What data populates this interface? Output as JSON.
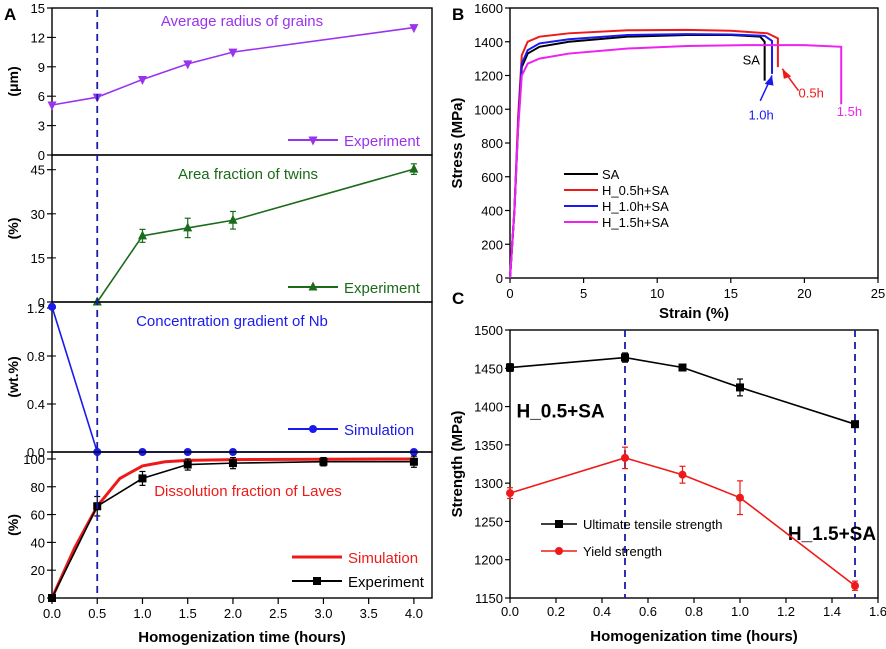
{
  "chart_data": [
    {
      "id": "A",
      "type": "line",
      "panel_label": "A",
      "xlabel": "Homogenization time (hours)",
      "xlim": [
        0,
        4.2
      ],
      "xticks": [
        0.0,
        0.5,
        1.0,
        1.5,
        2.0,
        2.5,
        3.0,
        3.5,
        4.0
      ],
      "xtick_labels": [
        "0.0",
        "0.5",
        "1.0",
        "1.5",
        "2.0",
        "2.5",
        "3.0",
        "3.5",
        "4.0"
      ],
      "vline_x": 0.5,
      "subplots": [
        {
          "title": "Average radius of grains",
          "ylabel": "(μm)",
          "ylim": [
            0,
            15
          ],
          "yticks": [
            0,
            3,
            6,
            9,
            12,
            15
          ],
          "title_color": "#9933ee",
          "series": [
            {
              "name": "Experiment",
              "color": "#9933ee",
              "marker": "triangle-down",
              "x": [
                0,
                0.5,
                1.0,
                1.5,
                2.0,
                4.0
              ],
              "y": [
                5.1,
                5.9,
                7.7,
                9.3,
                10.5,
                13.0
              ]
            }
          ]
        },
        {
          "title": "Area fraction of twins",
          "ylabel": "(%)",
          "ylim": [
            0,
            50
          ],
          "yticks": [
            0,
            15,
            30,
            45
          ],
          "title_color": "#1a6b1a",
          "series": [
            {
              "name": "Experiment",
              "color": "#1a6b1a",
              "marker": "triangle-up",
              "x": [
                0.5,
                1.0,
                1.5,
                2.0,
                4.0
              ],
              "y": [
                0,
                22.5,
                25.2,
                27.8,
                45.2
              ],
              "err": [
                0,
                2.2,
                3.3,
                3.0,
                1.8
              ]
            }
          ]
        },
        {
          "title": "Concentration gradient of Nb",
          "ylabel": "(wt.%)",
          "ylim": [
            0,
            1.25
          ],
          "yticks": [
            0.0,
            0.4,
            0.8,
            1.2
          ],
          "ytick_labels": [
            "0.0",
            "0.4",
            "0.8",
            "1.2"
          ],
          "title_color": "#1a1aee",
          "series": [
            {
              "name": "Simulation",
              "color": "#1a1aee",
              "marker": "circle",
              "x": [
                0,
                0.5,
                1.0,
                1.5,
                2.0,
                4.0
              ],
              "y": [
                1.21,
                0.0,
                0.0,
                0.0,
                0.0,
                0.0
              ]
            }
          ]
        },
        {
          "title": "Dissolution fraction of Laves",
          "ylabel": "(%)",
          "ylim": [
            0,
            105
          ],
          "yticks": [
            0,
            20,
            40,
            60,
            80,
            100
          ],
          "title_color": "#ee1a1a",
          "series": [
            {
              "name": "Simulation",
              "color": "#ee1a1a",
              "marker": "none",
              "x": [
                0,
                0.25,
                0.5,
                0.75,
                1.0,
                1.25,
                1.5,
                2.0,
                3.0,
                4.0
              ],
              "y": [
                0,
                36,
                66,
                86,
                95,
                98,
                99,
                99.5,
                99.8,
                100
              ]
            },
            {
              "name": "Experiment",
              "color": "#000000",
              "marker": "square",
              "x": [
                0,
                0.5,
                1.0,
                1.5,
                2.0,
                3.0,
                4.0
              ],
              "y": [
                0,
                66,
                86,
                96,
                97,
                98,
                98
              ],
              "err": [
                0,
                7,
                5,
                4,
                4,
                3,
                4
              ]
            }
          ]
        }
      ]
    },
    {
      "id": "B",
      "type": "line",
      "panel_label": "B",
      "xlabel": "Strain (%)",
      "ylabel": "Stress (MPa)",
      "xlim": [
        0,
        25
      ],
      "ylim": [
        0,
        1600
      ],
      "xticks": [
        0,
        5,
        10,
        15,
        20,
        25
      ],
      "yticks": [
        0,
        200,
        400,
        600,
        800,
        1000,
        1200,
        1400,
        1600
      ],
      "legend_position": "lower-left",
      "series": [
        {
          "name": "SA",
          "color": "#000000",
          "strain": [
            0,
            0.3,
            0.55,
            0.8,
            1.2,
            2,
            4,
            8,
            12,
            15,
            17,
            17.3,
            17.3
          ],
          "stress": [
            0,
            400,
            900,
            1250,
            1330,
            1370,
            1400,
            1430,
            1440,
            1440,
            1430,
            1400,
            1170
          ]
        },
        {
          "name": "H_0.5h+SA",
          "color": "#ee1a1a",
          "strain": [
            0,
            0.3,
            0.55,
            0.8,
            1.2,
            2,
            4,
            8,
            12,
            15,
            17.5,
            18.2,
            18.2
          ],
          "stress": [
            0,
            400,
            950,
            1320,
            1400,
            1430,
            1450,
            1468,
            1470,
            1465,
            1450,
            1420,
            1250
          ]
        },
        {
          "name": "H_1.0h+SA",
          "color": "#1a1aee",
          "strain": [
            0,
            0.3,
            0.55,
            0.8,
            1.2,
            2,
            4,
            8,
            12,
            15,
            17.3,
            17.8,
            17.8
          ],
          "stress": [
            0,
            400,
            900,
            1270,
            1350,
            1390,
            1415,
            1440,
            1445,
            1443,
            1435,
            1405,
            1210
          ]
        },
        {
          "name": "H_1.5h+SA",
          "color": "#ee22ee",
          "strain": [
            0,
            0.3,
            0.55,
            0.8,
            1.2,
            2,
            4,
            8,
            12,
            16,
            20,
            22.5,
            22.5
          ],
          "stress": [
            0,
            400,
            880,
            1200,
            1270,
            1300,
            1330,
            1360,
            1375,
            1380,
            1380,
            1370,
            1030
          ]
        }
      ],
      "annotations": [
        {
          "text": "SA",
          "color": "#000000",
          "strain": 15.8,
          "stress": 1265
        },
        {
          "text": "0.5h",
          "color": "#ee1a1a",
          "strain": 19.6,
          "stress": 1070
        },
        {
          "text": "1.0h",
          "color": "#1a1aee",
          "strain": 16.2,
          "stress": 940
        },
        {
          "text": "1.5h",
          "color": "#ee22ee",
          "strain": 22.2,
          "stress": 960
        }
      ]
    },
    {
      "id": "C",
      "type": "line",
      "panel_label": "C",
      "xlabel": "Homogenization time (hours)",
      "ylabel": "Strength (MPa)",
      "xlim": [
        0,
        1.6
      ],
      "ylim": [
        1150,
        1500
      ],
      "xticks": [
        0.0,
        0.2,
        0.4,
        0.6,
        0.8,
        1.0,
        1.2,
        1.4,
        1.6
      ],
      "xtick_labels": [
        "0.0",
        "0.2",
        "0.4",
        "0.6",
        "0.8",
        "1.0",
        "1.2",
        "1.4",
        "1.6"
      ],
      "yticks": [
        1150,
        1200,
        1250,
        1300,
        1350,
        1400,
        1450,
        1500
      ],
      "vlines_x": [
        0.5,
        1.5
      ],
      "annotations": [
        {
          "text": "H_0.5+SA",
          "x": 0.22,
          "y": 1386
        },
        {
          "text": "H_1.5+SA",
          "x": 1.4,
          "y": 1226
        }
      ],
      "series": [
        {
          "name": "Ultimate tensile strength",
          "color": "#000000",
          "marker": "square",
          "x": [
            0,
            0.5,
            0.75,
            1.0,
            1.5
          ],
          "y": [
            1451,
            1464,
            1451,
            1425,
            1377
          ],
          "err": [
            5,
            6,
            4,
            11,
            4
          ]
        },
        {
          "name": "Yield strength",
          "color": "#ee1a1a",
          "marker": "circle",
          "x": [
            0,
            0.5,
            0.75,
            1.0,
            1.5
          ],
          "y": [
            1287,
            1333,
            1311,
            1281,
            1166
          ],
          "err": [
            7,
            14,
            11,
            22,
            6
          ]
        }
      ]
    }
  ]
}
